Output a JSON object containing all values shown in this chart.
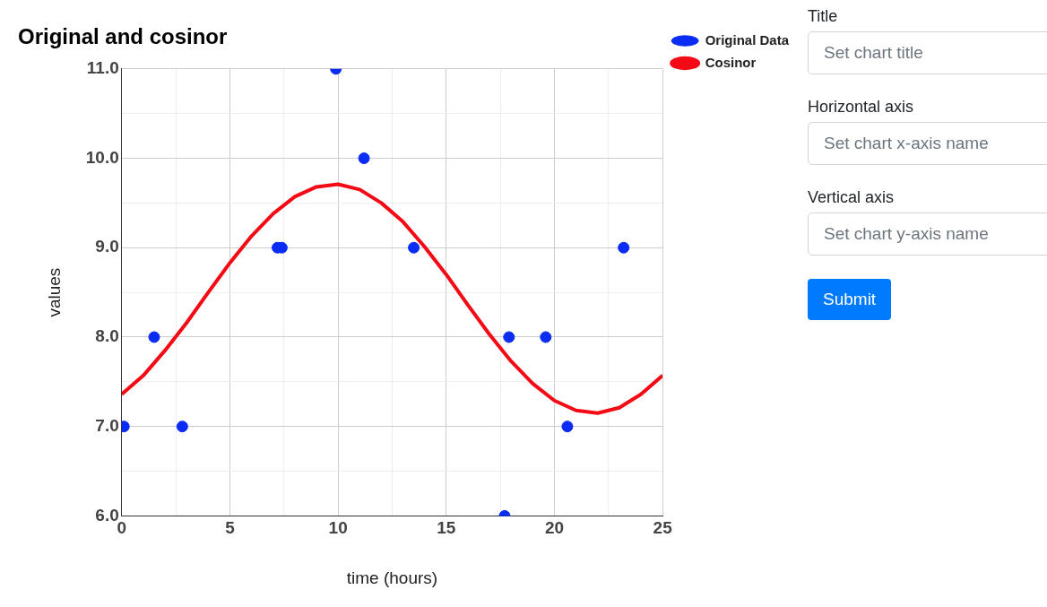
{
  "chart_data": {
    "type": "scatter",
    "title": "Original and cosinor",
    "xlabel": "time (hours)",
    "ylabel": "values",
    "series": [
      {
        "name": "Original Data",
        "type": "scatter",
        "marker": "circle",
        "color": "#0a2cf5",
        "x": [
          0.1,
          1.5,
          2.8,
          7.2,
          7.4,
          9.9,
          11.2,
          13.5,
          17.7,
          17.9,
          19.6,
          20.6,
          23.2
        ],
        "values": [
          7,
          8,
          7,
          9,
          9,
          11,
          10,
          9,
          6,
          8,
          8,
          7,
          9
        ]
      },
      {
        "name": "Cosinor",
        "type": "line",
        "color": "#f40a14",
        "x": [
          0,
          1,
          2,
          3,
          4,
          5,
          6,
          7,
          8,
          9,
          10,
          11,
          12,
          13,
          14,
          15,
          16,
          17,
          18,
          19,
          20,
          21,
          22,
          23,
          24,
          25
        ],
        "values": [
          7.36,
          7.57,
          7.85,
          8.16,
          8.5,
          8.83,
          9.13,
          9.38,
          9.57,
          9.68,
          9.71,
          9.65,
          9.5,
          9.29,
          9.01,
          8.7,
          8.36,
          8.03,
          7.73,
          7.48,
          7.29,
          7.18,
          7.15,
          7.21,
          7.36,
          7.57
        ]
      }
    ],
    "xlim": [
      0,
      25
    ],
    "xticks": [
      0,
      {
        "value": 2.5,
        "label": null
      },
      5,
      {
        "value": 7.5,
        "label": null
      },
      10,
      {
        "value": 12.5,
        "label": null
      },
      15,
      {
        "value": 17.5,
        "label": null
      },
      20,
      {
        "value": 22.5,
        "label": null
      },
      25
    ],
    "ylim": [
      6,
      11
    ],
    "yticks": [
      {
        "value": 6,
        "label": "6.0"
      },
      {
        "value": 6.5,
        "label": null
      },
      {
        "value": 7,
        "label": "7.0"
      },
      {
        "value": 7.5,
        "label": null
      },
      {
        "value": 8,
        "label": "8.0"
      },
      {
        "value": 8.5,
        "label": null
      },
      {
        "value": 9,
        "label": "9.0"
      },
      {
        "value": 9.5,
        "label": null
      },
      {
        "value": 10,
        "label": "10.0"
      },
      {
        "value": 10.5,
        "label": null
      },
      {
        "value": 11,
        "label": "11.0"
      }
    ],
    "grid": true,
    "legend": "top right",
    "annotations": [
      "Title",
      "Set chart title",
      "Horizontal axis",
      "Set chart x-axis name",
      "Vertical axis",
      "Set chart y-axis name",
      "Submit"
    ]
  }
}
